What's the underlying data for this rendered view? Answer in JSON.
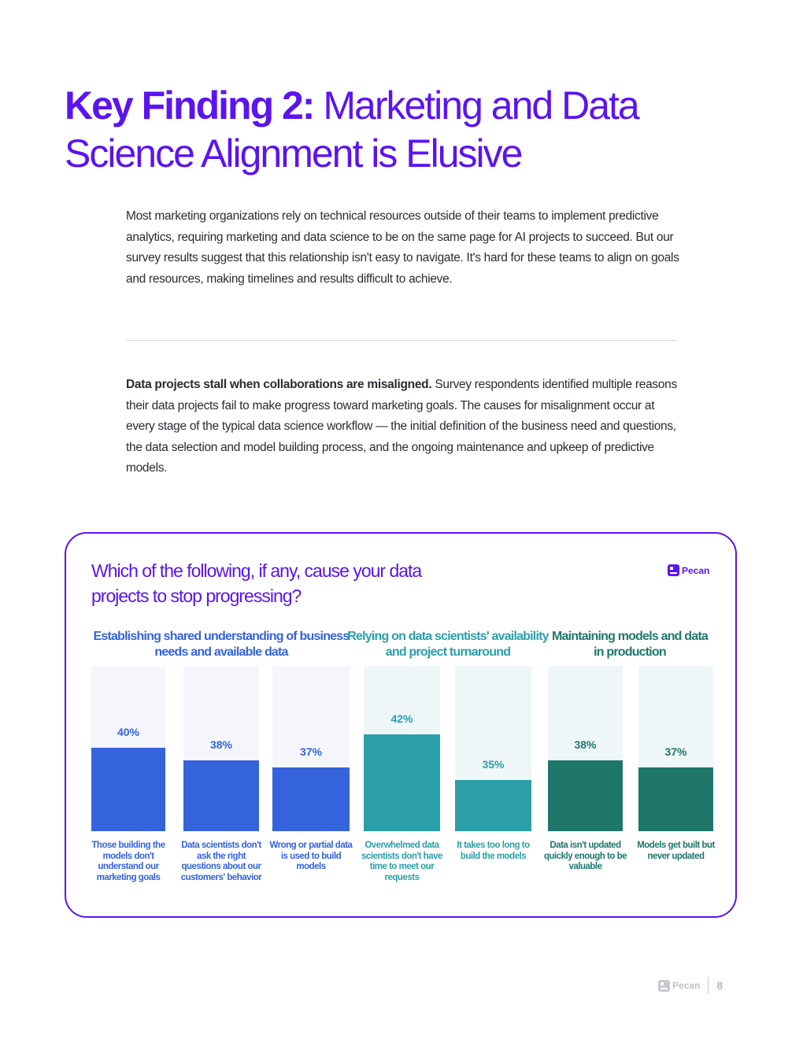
{
  "title": {
    "bold": "Key Finding 2:",
    "rest": " Marketing and Data Science Alignment is Elusive"
  },
  "intro": "Most marketing organizations rely on technical resources outside of their teams to implement predictive analytics, requiring marketing and data science to be on the same page for AI projects to succeed. But our survey results suggest that this relationship isn't easy to navigate. It's hard for these teams to align on goals and resources, making timelines and results difficult to achieve.",
  "body": {
    "bold": "Data projects stall when collaborations are misaligned.",
    "rest": " Survey respondents identified multiple reasons their data projects fail to make progress toward marketing goals. The causes for misalignment occur at every stage of the typical data science workflow — the initial definition of the business need and questions, the data selection and model building process, and the ongoing maintenance and upkeep of predictive models."
  },
  "brand": "Pecan",
  "footer": {
    "brand": "Pecan",
    "page": "8"
  },
  "colors": {
    "accent": "#5b14f0",
    "blue": "#3563dc",
    "teal": "#2a9fa8",
    "green": "#1f776c",
    "bg_blue": "#f4f6fb",
    "bg_teal": "#eef6f7"
  },
  "chart_data": {
    "type": "bar",
    "title": "Which of the following, if any, cause your data projects to stop progressing?",
    "groups": [
      {
        "name": "Establishing shared understanding of business needs and available data",
        "color": "#3563dc",
        "bg": "#f4f6fb",
        "categories": [
          0,
          1,
          2
        ]
      },
      {
        "name": "Relying on data scientists' availability and project turnaround",
        "color": "#2a9fa8",
        "bg": "#eef6f7",
        "categories": [
          3,
          4
        ]
      },
      {
        "name": "Maintaining models and data in production",
        "color": "#1f776c",
        "bg": "#eef6f7",
        "categories": [
          5,
          6
        ]
      }
    ],
    "categories": [
      "Those building the models don't understand our marketing goals",
      "Data scientists don't ask the right questions about our customers' behavior",
      "Wrong or partial data is used to build models",
      "Overwhelmed data scientists don't have time to meet our requests",
      "It takes too long to build the models",
      "Data isn't updated quickly enough to be valuable",
      "Models get built but never updated"
    ],
    "values": [
      40,
      38,
      37,
      42,
      35,
      38,
      37
    ],
    "data_labels": [
      "40%",
      "38%",
      "37%",
      "42%",
      "35%",
      "38%",
      "37%"
    ],
    "unit": "%",
    "ylim": [
      27.2,
      52.5
    ],
    "grid": false
  }
}
